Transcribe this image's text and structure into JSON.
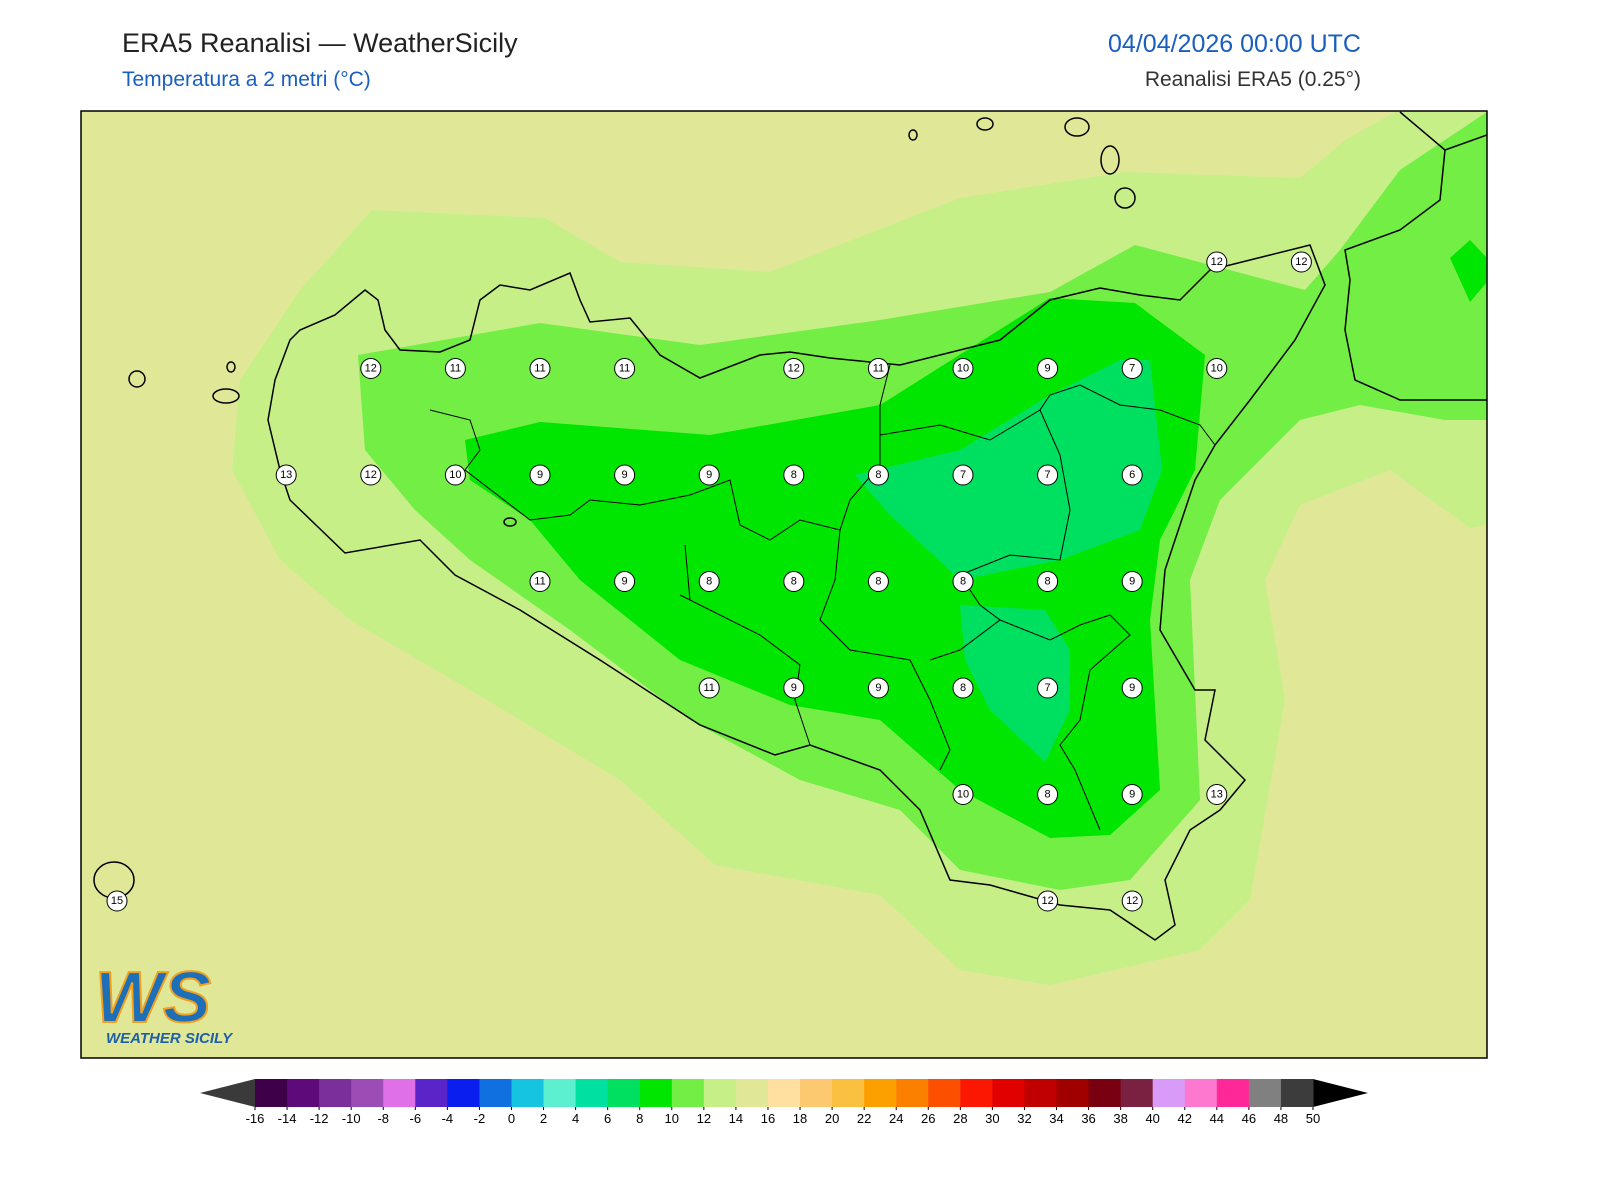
{
  "header": {
    "title": "ERA5 Reanalisi — WeatherSicily",
    "subtitle": "Temperatura a 2 metri (°C)",
    "datetime": "04/04/2026 00:00 UTC",
    "source": "Reanalisi ERA5 (0.25°)"
  },
  "stations": {
    "rows": [
      [
        null,
        null,
        null,
        null,
        null,
        null,
        null,
        null,
        null,
        null,
        null,
        null,
        null,
        12,
        12
      ],
      [
        null,
        null,
        null,
        12,
        11,
        11,
        11,
        null,
        12,
        11,
        10,
        9,
        7,
        10,
        null
      ],
      [
        null,
        null,
        13,
        12,
        10,
        9,
        9,
        9,
        8,
        8,
        7,
        7,
        6,
        null,
        null
      ],
      [
        null,
        null,
        null,
        null,
        null,
        11,
        9,
        8,
        8,
        8,
        8,
        8,
        9,
        null,
        null
      ],
      [
        null,
        null,
        null,
        null,
        null,
        null,
        null,
        11,
        9,
        9,
        8,
        7,
        9,
        null,
        null
      ],
      [
        null,
        null,
        null,
        null,
        null,
        null,
        null,
        null,
        null,
        null,
        10,
        8,
        9,
        13,
        null
      ],
      [
        15,
        null,
        null,
        null,
        null,
        null,
        null,
        null,
        null,
        null,
        null,
        12,
        12,
        null,
        null
      ]
    ]
  },
  "colorbar": {
    "ticks": [
      -16,
      -14,
      -12,
      -10,
      -8,
      -6,
      -4,
      -2,
      0,
      2,
      4,
      6,
      8,
      10,
      12,
      14,
      16,
      18,
      20,
      22,
      24,
      26,
      28,
      30,
      32,
      34,
      36,
      38,
      40,
      42,
      44,
      46,
      48,
      50
    ],
    "colors": [
      "#3d0049",
      "#5e0a7a",
      "#7b2f9a",
      "#9b4cb5",
      "#e070e8",
      "#5a24c8",
      "#0a1ef0",
      "#1070e0",
      "#15c4e0",
      "#5cefd0",
      "#00e0a0",
      "#00e060",
      "#00e600",
      "#72ee44",
      "#c6ef88",
      "#e0e898",
      "#ffe0a0",
      "#fcc870",
      "#fac040",
      "#fca000",
      "#fc8000",
      "#fc5000",
      "#fc1800",
      "#e00000",
      "#c00000",
      "#a00000",
      "#780010",
      "#7a2040",
      "#d89cf8",
      "#ff78d0",
      "#ff2898",
      "#808080",
      "#3c3c3c"
    ],
    "under_color": "#3a3a3a",
    "over_color": "#000000"
  },
  "logo": {
    "mark": "WS",
    "text": "WEATHER SICILY"
  }
}
